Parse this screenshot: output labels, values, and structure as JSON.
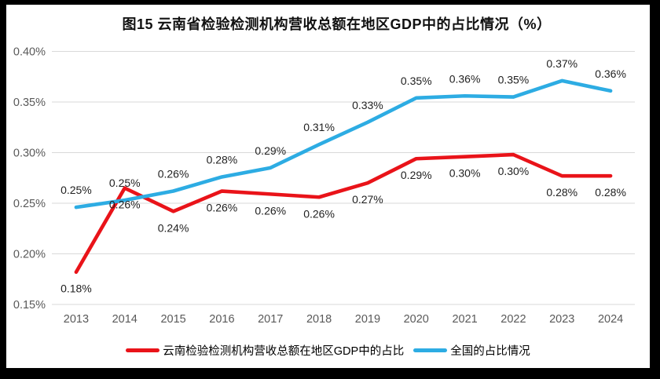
{
  "frame": {
    "border_color": "#000000",
    "chart_background": "#ffffff"
  },
  "chart_data": {
    "type": "line",
    "title": "图15 云南省检验检测机构营收总额在地区GDP中的占比情况（%）",
    "categories": [
      "2013",
      "2014",
      "2015",
      "2016",
      "2017",
      "2018",
      "2019",
      "2020",
      "2021",
      "2022",
      "2023",
      "2024"
    ],
    "xlabel": "",
    "ylabel": "",
    "ylim_percent": [
      0.15,
      0.4
    ],
    "y_axis": {
      "ticks": [
        "0.40%",
        "0.35%",
        "0.30%",
        "0.25%",
        "0.20%",
        "0.15%"
      ],
      "grid": true,
      "grid_color": "#d9d9d9",
      "tick_color": "#595959"
    },
    "legend_position": "bottom",
    "series": [
      {
        "name": "云南检验检测机构营收总额在地区GDP中的占比",
        "color": "#e91319",
        "label_position": "below",
        "labels": [
          "0.18%",
          "0.26%",
          "0.24%",
          "0.26%",
          "0.26%",
          "0.26%",
          "0.27%",
          "0.29%",
          "0.30%",
          "0.30%",
          "0.28%",
          "0.28%"
        ],
        "values": [
          0.182,
          0.265,
          0.242,
          0.262,
          0.259,
          0.256,
          0.27,
          0.294,
          0.296,
          0.298,
          0.277,
          0.277
        ]
      },
      {
        "name": "全国的占比情况",
        "color": "#2dace3",
        "label_position": "above",
        "labels": [
          "0.25%",
          "0.25%",
          "0.26%",
          "0.28%",
          "0.29%",
          "0.31%",
          "0.33%",
          "0.35%",
          "0.36%",
          "0.35%",
          "0.37%",
          "0.36%"
        ],
        "values": [
          0.246,
          0.253,
          0.262,
          0.276,
          0.285,
          0.308,
          0.33,
          0.354,
          0.356,
          0.355,
          0.371,
          0.361
        ]
      }
    ],
    "data_label_color": "#1f1f1f"
  }
}
